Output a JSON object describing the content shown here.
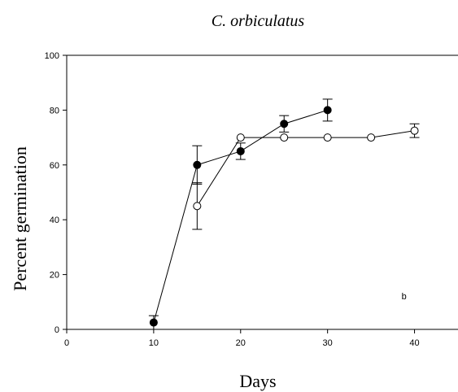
{
  "chart_data": {
    "type": "line",
    "title": "C. orbiculatus",
    "xlabel": "Days",
    "ylabel": "Percent germination",
    "xlim": [
      0,
      45
    ],
    "ylim": [
      0,
      100
    ],
    "xticks": [
      0,
      10,
      20,
      30,
      40
    ],
    "yticks": [
      0,
      20,
      40,
      60,
      80,
      100
    ],
    "grid": false,
    "annotation": "b",
    "series": [
      {
        "marker": "filled-circle",
        "color": "#000000",
        "points": [
          {
            "x": 10,
            "y": 2.5,
            "err": 2.5
          },
          {
            "x": 15,
            "y": 60,
            "err": 7
          },
          {
            "x": 20,
            "y": 65,
            "err": 3
          },
          {
            "x": 25,
            "y": 75,
            "err": 3
          },
          {
            "x": 30,
            "y": 80,
            "err": 4
          }
        ]
      },
      {
        "marker": "open-circle",
        "color": "#000000",
        "points": [
          {
            "x": 15,
            "y": 45,
            "err": 8.5
          },
          {
            "x": 20,
            "y": 70,
            "err": 0
          },
          {
            "x": 25,
            "y": 70,
            "err": 0
          },
          {
            "x": 30,
            "y": 70,
            "err": 0
          },
          {
            "x": 35,
            "y": 70,
            "err": 0
          },
          {
            "x": 40,
            "y": 72.5,
            "err": 2.5
          }
        ]
      }
    ]
  }
}
